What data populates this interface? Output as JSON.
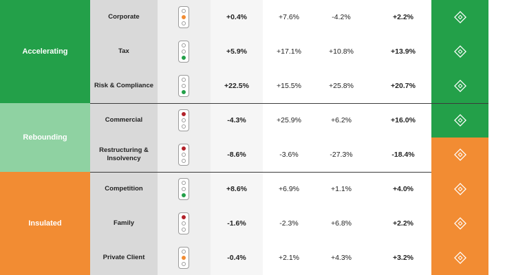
{
  "segments": [
    {
      "label": "Accelerating"
    },
    {
      "label": "Rebounding"
    },
    {
      "label": "Insulated"
    }
  ],
  "rows": [
    {
      "practice": "Corporate",
      "light": "amber",
      "v1": "+0.4%",
      "v2": "+7.6%",
      "v3": "-4.2%",
      "v4": "+2.2%",
      "icon_color": "#23a049"
    },
    {
      "practice": "Tax",
      "light": "green",
      "v1": "+5.9%",
      "v2": "+17.1%",
      "v3": "+10.8%",
      "v4": "+13.9%",
      "icon_color": "#23a049"
    },
    {
      "practice": "Risk & Compliance",
      "light": "green",
      "v1": "+22.5%",
      "v2": "+15.5%",
      "v3": "+25.8%",
      "v4": "+20.7%",
      "icon_color": "#23a049"
    },
    {
      "practice": "Commercial",
      "light": "red",
      "v1": "-4.3%",
      "v2": "+25.9%",
      "v3": "+6.2%",
      "v4": "+16.0%",
      "icon_color": "#23a049"
    },
    {
      "practice": "Restructuring & Insolvency",
      "light": "red",
      "v1": "-8.6%",
      "v2": "-3.6%",
      "v3": "-27.3%",
      "v4": "-18.4%",
      "icon_color": "#f28c33"
    },
    {
      "practice": "Competition",
      "light": "green",
      "v1": "+8.6%",
      "v2": "+6.9%",
      "v3": "+1.1%",
      "v4": "+4.0%",
      "icon_color": "#f28c33"
    },
    {
      "practice": "Family",
      "light": "red",
      "v1": "-1.6%",
      "v2": "-2.3%",
      "v3": "+6.8%",
      "v4": "+2.2%",
      "icon_color": "#f28c33"
    },
    {
      "practice": "Private Client",
      "light": "amber",
      "v1": "-0.4%",
      "v2": "+2.1%",
      "v3": "+4.3%",
      "v4": "+3.2%",
      "icon_color": "#f28c33"
    }
  ],
  "colors": {
    "accelerating": "#23a049",
    "rebounding": "#8fd2a2",
    "insulated": "#f28c33",
    "red_light": "#b2222a"
  },
  "icons": {
    "row_icon": "diamond-badge-icon"
  }
}
